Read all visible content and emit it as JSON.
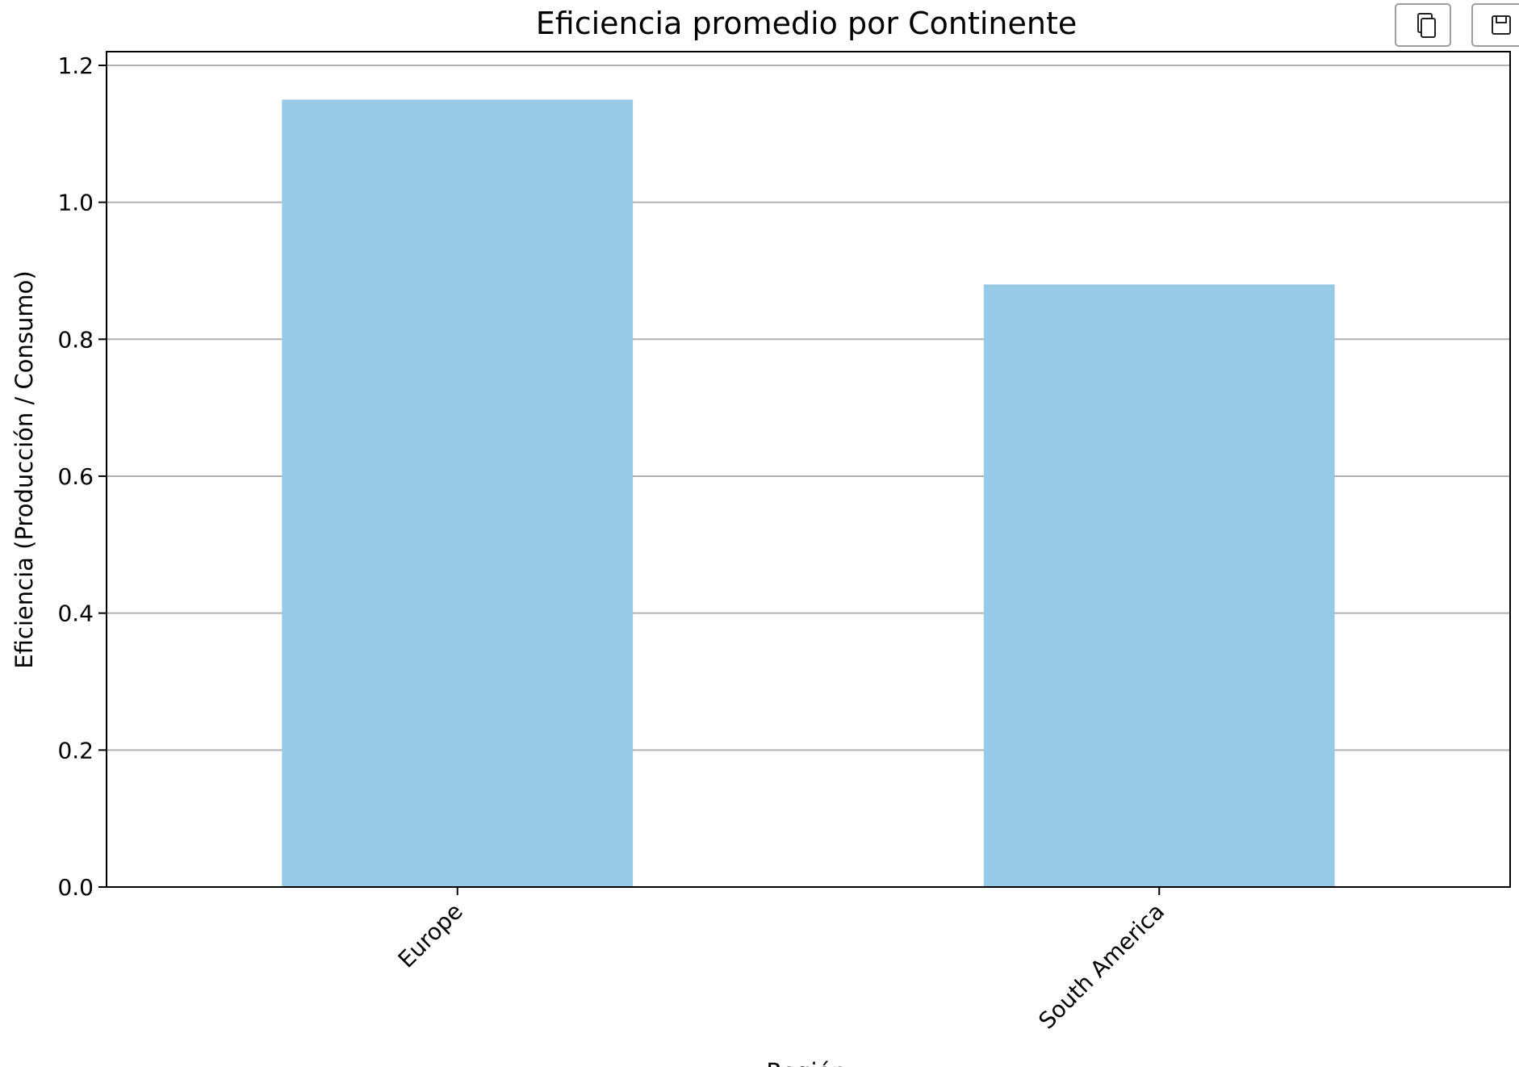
{
  "chart_data": {
    "type": "bar",
    "title": "Eficiencia promedio por Continente",
    "xlabel": "Región",
    "ylabel": "Eficiencia (Producción / Consumo)",
    "categories": [
      "Europe",
      "South America"
    ],
    "values": [
      1.15,
      0.88
    ],
    "ylim": [
      0,
      1.22
    ],
    "yticks": [
      "0.0",
      "0.2",
      "0.4",
      "0.6",
      "0.8",
      "1.0",
      "1.2"
    ],
    "grid": true,
    "bar_color": "#96cae7"
  },
  "toolbar": {
    "copy_icon": "copy-icon",
    "save_icon": "save-icon"
  }
}
